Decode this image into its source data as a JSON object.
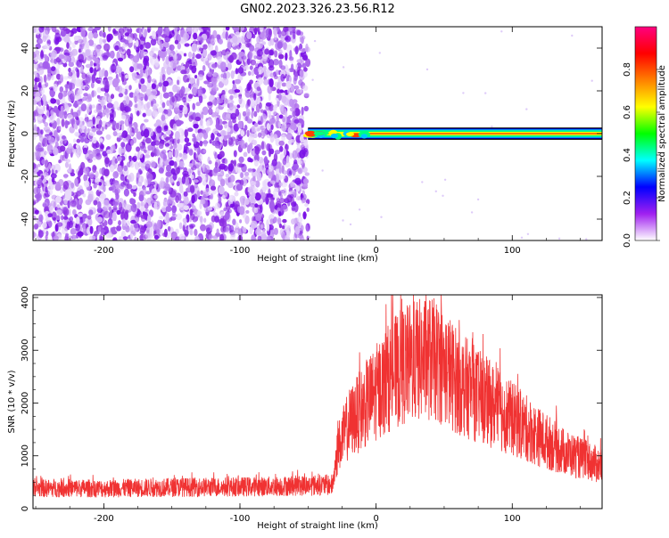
{
  "title": "GN02.2023.326.23.56.R12",
  "colors": {
    "noise": "#8a2be2",
    "snr_line": "#f03232",
    "frame": "#000000"
  },
  "chart_data": [
    {
      "type": "heatmap",
      "xlabel": "Height of straight line (km)",
      "ylabel": "Frequency (Hz)",
      "xlim": [
        -252,
        166
      ],
      "ylim": [
        -50,
        50
      ],
      "xticks": [
        -200,
        -100,
        0,
        100
      ],
      "xtick_labels": [
        "-200",
        "-100",
        "0",
        "100"
      ],
      "yticks": [
        -40,
        -20,
        0,
        20,
        40
      ],
      "ytick_labels": [
        "-40",
        "-20",
        "0",
        "20",
        "40"
      ],
      "noise_region_x": [
        -252,
        -50
      ],
      "signal_band": {
        "x": [
          -50,
          166
        ],
        "center_frequency": 0,
        "half_width_hz": 1.5
      },
      "colorbar": {
        "label": "Normalized spectral amplitude",
        "range": [
          0,
          1
        ],
        "ticks": [
          0.0,
          0.2,
          0.4,
          0.6,
          0.8
        ],
        "tick_labels": [
          "0.0",
          "0.2",
          "0.4",
          "0.6",
          "0.8"
        ],
        "colors": [
          "#ffffff",
          "#a020f0",
          "#0000ff",
          "#00ffff",
          "#00ff00",
          "#ffff00",
          "#ff8000",
          "#ff0000",
          "#ff0080"
        ]
      }
    },
    {
      "type": "line",
      "xlabel": "Height of straight line (km)",
      "ylabel": "SNR (10 * v/v)",
      "xlim": [
        -252,
        166
      ],
      "ylim": [
        0,
        4050
      ],
      "xticks": [
        -200,
        -100,
        0,
        100
      ],
      "xtick_labels": [
        "-200",
        "-100",
        "0",
        "100"
      ],
      "yticks": [
        0,
        1000,
        2000,
        3000,
        4000
      ],
      "ytick_labels": [
        "0",
        "1000",
        "2000",
        "3000",
        "4000"
      ],
      "series": [
        {
          "x": [
            -252,
            -230,
            -200,
            -170,
            -140,
            -110,
            -80,
            -50,
            -32,
            -28,
            -20,
            -10,
            0,
            10,
            20,
            30,
            40,
            50,
            60,
            80,
            100,
            120,
            140,
            166
          ],
          "y": [
            380,
            390,
            380,
            395,
            405,
            410,
            420,
            440,
            450,
            1150,
            1600,
            1900,
            2200,
            2500,
            2700,
            2800,
            2850,
            2700,
            2400,
            2050,
            1700,
            1350,
            1050,
            800
          ]
        }
      ]
    }
  ]
}
